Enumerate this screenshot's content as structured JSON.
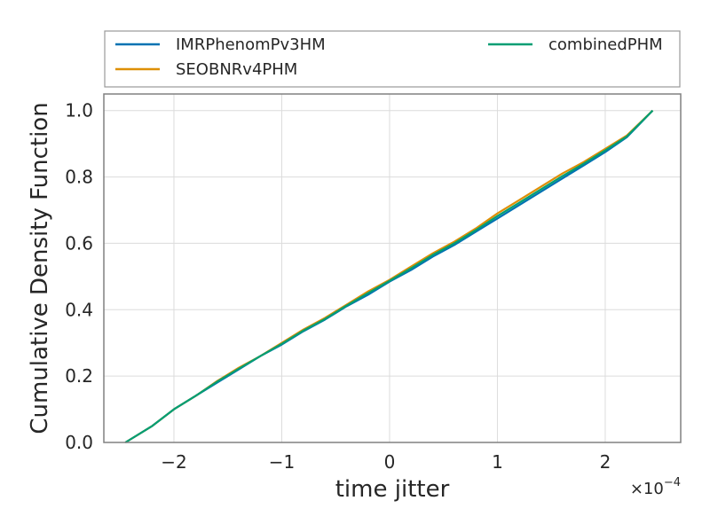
{
  "chart_data": {
    "type": "line",
    "title": "",
    "xlabel": "time jitter",
    "ylabel": "Cumulative Density Function",
    "x_offset_label": "×10",
    "x_offset_exponent": "−4",
    "xlim": [
      -2.65,
      2.7
    ],
    "ylim": [
      0.0,
      1.05
    ],
    "xticks": [
      -2,
      -1,
      0,
      1,
      2
    ],
    "xtick_labels": [
      "−2",
      "−1",
      "0",
      "1",
      "2"
    ],
    "yticks": [
      0.0,
      0.2,
      0.4,
      0.6,
      0.8,
      1.0
    ],
    "ytick_labels": [
      "0.0",
      "0.2",
      "0.4",
      "0.6",
      "0.8",
      "1.0"
    ],
    "grid": true,
    "legend_position": "top (above plot)",
    "series": [
      {
        "name": "IMRPhenomPv3HM",
        "color": "#0072b2",
        "x": [
          -2.45,
          -2.2,
          -2.0,
          -1.8,
          -1.6,
          -1.4,
          -1.2,
          -1.0,
          -0.8,
          -0.6,
          -0.4,
          -0.2,
          0.0,
          0.2,
          0.4,
          0.6,
          0.8,
          1.0,
          1.2,
          1.4,
          1.6,
          1.8,
          2.0,
          2.2,
          2.44
        ],
        "y": [
          0.0,
          0.05,
          0.1,
          0.14,
          0.18,
          0.22,
          0.26,
          0.295,
          0.335,
          0.37,
          0.41,
          0.445,
          0.485,
          0.52,
          0.56,
          0.595,
          0.635,
          0.675,
          0.715,
          0.755,
          0.795,
          0.835,
          0.875,
          0.92,
          1.0
        ]
      },
      {
        "name": "SEOBNRv4PHM",
        "color": "#de8f05",
        "x": [
          -2.45,
          -2.2,
          -2.0,
          -1.8,
          -1.6,
          -1.4,
          -1.2,
          -1.0,
          -0.8,
          -0.6,
          -0.4,
          -0.2,
          0.0,
          0.2,
          0.4,
          0.6,
          0.8,
          1.0,
          1.2,
          1.4,
          1.6,
          1.8,
          2.0,
          2.2,
          2.44
        ],
        "y": [
          0.0,
          0.05,
          0.1,
          0.14,
          0.185,
          0.225,
          0.26,
          0.3,
          0.34,
          0.375,
          0.415,
          0.455,
          0.49,
          0.53,
          0.57,
          0.605,
          0.645,
          0.69,
          0.73,
          0.77,
          0.81,
          0.845,
          0.885,
          0.925,
          1.0
        ]
      },
      {
        "name": "combinedPHM",
        "color": "#029e73",
        "x": [
          -2.45,
          -2.2,
          -2.0,
          -1.8,
          -1.6,
          -1.4,
          -1.2,
          -1.0,
          -0.8,
          -0.6,
          -0.4,
          -0.2,
          0.0,
          0.2,
          0.4,
          0.6,
          0.8,
          1.0,
          1.2,
          1.4,
          1.6,
          1.8,
          2.0,
          2.2,
          2.44
        ],
        "y": [
          0.0,
          0.05,
          0.1,
          0.14,
          0.183,
          0.222,
          0.26,
          0.297,
          0.337,
          0.372,
          0.412,
          0.45,
          0.487,
          0.525,
          0.565,
          0.6,
          0.64,
          0.682,
          0.722,
          0.762,
          0.802,
          0.84,
          0.88,
          0.922,
          1.0
        ]
      }
    ]
  }
}
